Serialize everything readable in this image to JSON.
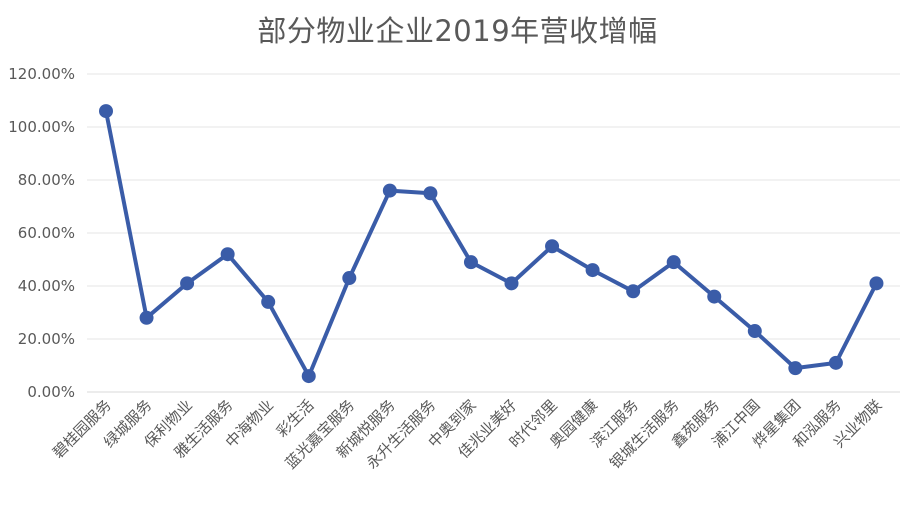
{
  "chart_data": {
    "type": "line",
    "title": "部分物业企业2019年营收增幅",
    "xlabel": "",
    "ylabel": "",
    "ylim": [
      0,
      120
    ],
    "yticks": [
      "0.00%",
      "20.00%",
      "40.00%",
      "60.00%",
      "80.00%",
      "100.00%",
      "120.00%"
    ],
    "grid": true,
    "legend": "none",
    "categories": [
      "碧桂园服务",
      "绿城服务",
      "保利物业",
      "雅生活服务",
      "中海物业",
      "彩生活",
      "蓝光嘉宝服务",
      "新城悦服务",
      "永升生活服务",
      "中奥到家",
      "佳兆业美好",
      "时代邻里",
      "奥园健康",
      "滨江服务",
      "银城生活服务",
      "鑫苑服务",
      "浦江中国",
      "烨星集团",
      "和泓服务",
      "兴业物联"
    ],
    "series": [
      {
        "values": [
          106,
          28,
          41,
          52,
          34,
          6,
          43,
          76,
          75,
          49,
          41,
          55,
          46,
          38,
          49,
          36,
          23,
          9,
          11,
          41
        ]
      }
    ],
    "colors": {
      "line": "#3A5CA8",
      "grid": "#E6E6E6",
      "text": "#595959"
    }
  }
}
